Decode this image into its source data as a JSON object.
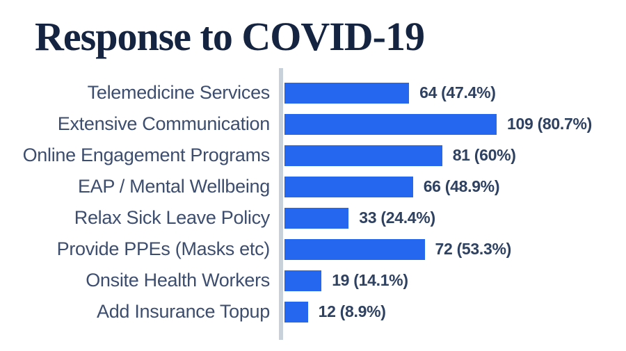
{
  "header": {
    "title": "Response to COVID-19"
  },
  "chart_data": {
    "type": "bar",
    "orientation": "horizontal",
    "title": "Response to COVID-19",
    "categories": [
      "Telemedicine Services",
      "Extensive Communication",
      "Online Engagement Programs",
      "EAP / Mental Wellbeing",
      "Relax Sick Leave Policy",
      "Provide PPEs (Masks etc)",
      "Onsite Health Workers",
      "Add Insurance Topup"
    ],
    "values": [
      64,
      109,
      81,
      66,
      33,
      72,
      19,
      12
    ],
    "percentages": [
      47.4,
      80.7,
      60,
      48.9,
      24.4,
      53.3,
      14.1,
      8.9
    ],
    "value_labels": [
      "64 (47.4%)",
      "109 (80.7%)",
      "81 (60%)",
      "66 (48.9%)",
      "33 (24.4%)",
      "72 (53.3%)",
      "19 (14.1%)",
      "12 (8.9%)"
    ],
    "xlim": [
      0,
      109
    ],
    "grid": false,
    "legend": false,
    "colors": {
      "bar": "#2667ef",
      "axis_line": "#c8d1da",
      "category_label": "#3d4d6e",
      "value_label": "#2e4161",
      "title": "#152440"
    }
  }
}
